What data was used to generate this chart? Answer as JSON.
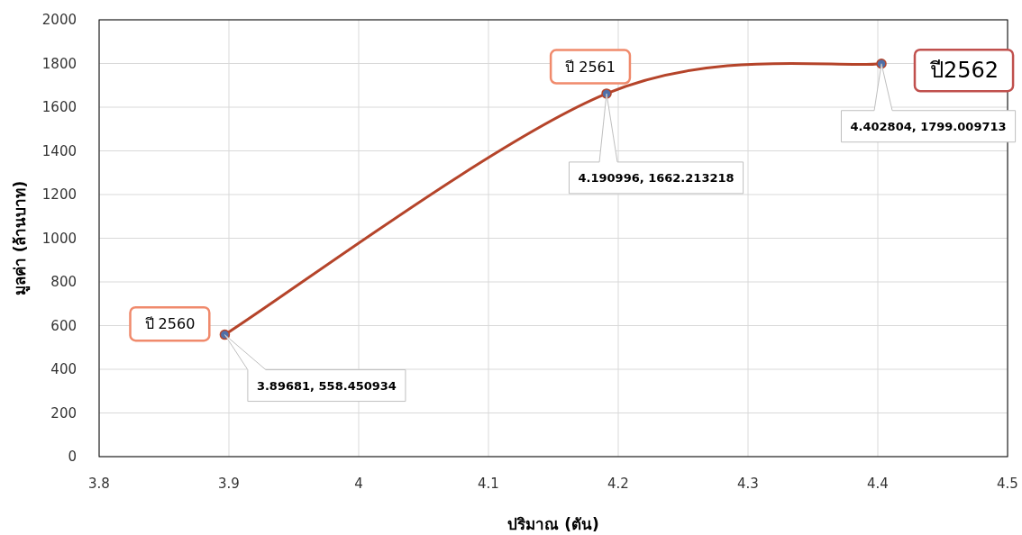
{
  "chart_data": {
    "type": "line",
    "xlabel": "ปริมาณ (ตัน)",
    "ylabel": "มูลค่า (ล้านบาท)",
    "x": [
      3.89681,
      4.190996,
      4.402804
    ],
    "series": [
      {
        "color": "#b5442a",
        "values": [
          558.450934,
          1662.213218,
          1799.009713
        ]
      }
    ],
    "xlim": [
      3.8,
      4.5
    ],
    "xticks": [
      3.8,
      3.9,
      4,
      4.1,
      4.2,
      4.3,
      4.4,
      4.5
    ],
    "ylim": [
      0,
      2000
    ],
    "yticks": [
      0,
      200,
      400,
      600,
      800,
      1000,
      1200,
      1400,
      1600,
      1800,
      2000
    ],
    "grid": true,
    "marker": "circle",
    "line_style": "solid",
    "annotations": [
      {
        "text": "ปี 2560",
        "x": 3.89681,
        "y": 558.450934
      },
      "3.89681,  558.450934",
      {
        "text": "ปี 2561",
        "x": 4.190996,
        "y": 1662.213218
      },
      "4.190996,  1662.213218",
      {
        "text": "ปี2562",
        "x": 4.402804,
        "y": 1799.009713
      },
      "4.402804,  1799.009713"
    ]
  }
}
